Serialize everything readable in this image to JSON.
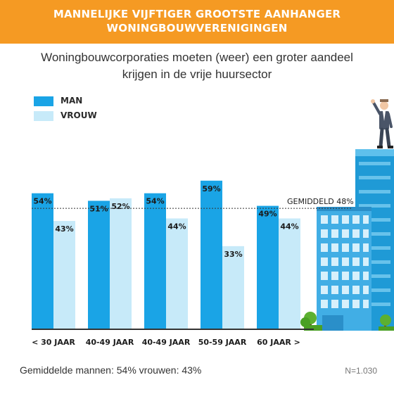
{
  "header": {
    "title_line1": "MANNELIJKE VIJFTIGER GROOTSTE AANHANGER",
    "title_line2": "WONINGBOUWVERENIGINGEN"
  },
  "subtitle_line1": "Woningbouwcorporaties moeten (weer) een groter aandeel",
  "subtitle_line2": "krijgen in de vrije huursector",
  "colors": {
    "header_bg": "#f59a23",
    "man": "#1aa4e6",
    "vrouw": "#c7eaf9",
    "axis": "#333333"
  },
  "chart_data": {
    "type": "bar",
    "categories": [
      "< 30 JAAR",
      "40-49 JAAR",
      "40-49 JAAR",
      "50-59 JAAR",
      "60 JAAR >"
    ],
    "series": [
      {
        "name": "MAN",
        "values": [
          54,
          51,
          54,
          59,
          49
        ],
        "labels": [
          "54%",
          "51%",
          "54%",
          "59%",
          "49%"
        ],
        "color": "#1aa4e6"
      },
      {
        "name": "VROUW",
        "values": [
          43,
          52,
          44,
          33,
          44
        ],
        "labels": [
          "43%",
          "52%",
          "44%",
          "33%",
          "44%"
        ],
        "color": "#c7eaf9"
      }
    ],
    "reference_line": {
      "value": 48,
      "label": "GEMIDDELD 48%"
    },
    "ylim": [
      0,
      100
    ],
    "grid": false,
    "legend_position": "top-left"
  },
  "footer": {
    "averages": "Gemiddelde mannen: 54%  vrouwen: 43%",
    "sample": "N=1.030"
  }
}
